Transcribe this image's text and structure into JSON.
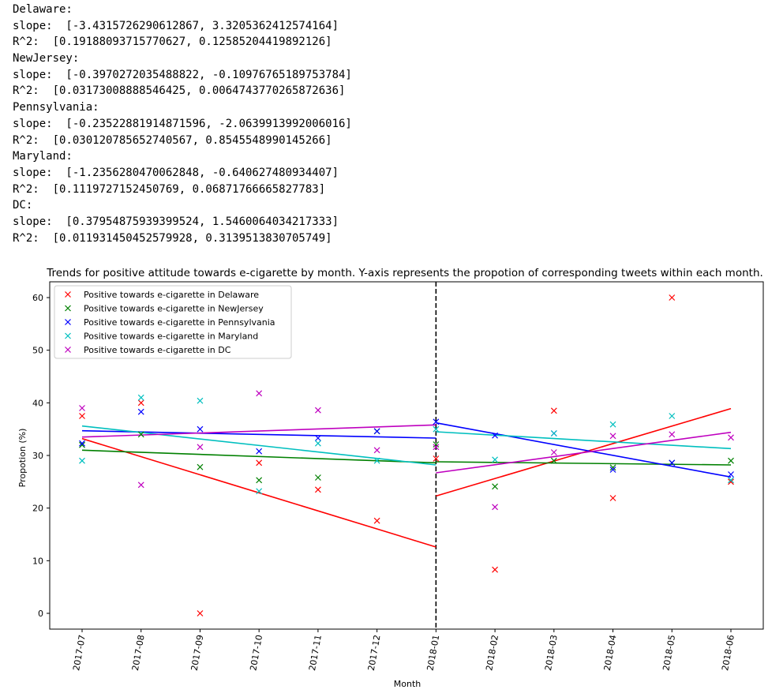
{
  "console_output": [
    "Delaware:",
    "slope:  [-3.4315726290612867, 3.3205362412574164]",
    "R^2:  [0.19188093715770627, 0.12585204419892126]",
    "NewJersey:",
    "slope:  [-0.3970272035488822, -0.10976765189753784]",
    "R^2:  [0.03173008888546425, 0.0064743770265872636]",
    "Pennsylvania:",
    "slope:  [-0.23522881914871596, -2.0639913992006016]",
    "R^2:  [0.030120785652740567, 0.8545548990145266]",
    "Maryland:",
    "slope:  [-1.2356280470062848, -0.640627480934407]",
    "R^2:  [0.1119727152450769, 0.06871766665827783]",
    "DC:",
    "slope:  [0.37954875939399524, 1.5460064034217333]",
    "R^2:  [0.011931450452579928, 0.3139513830705749]"
  ],
  "chart_data": {
    "type": "scatter",
    "title": "Trends for positive attitude towards e-cigarette by month. Y-axis represents the propotion of corresponding tweets within each month.",
    "xlabel": "Month",
    "ylabel": "Propotion (%)",
    "categories": [
      "2017-07",
      "2017-08",
      "2017-09",
      "2017-10",
      "2017-11",
      "2017-12",
      "2018-01",
      "2018-02",
      "2018-03",
      "2018-04",
      "2018-05",
      "2018-06"
    ],
    "ylim": [
      -3,
      63
    ],
    "yticks": [
      0,
      10,
      20,
      30,
      40,
      50,
      60
    ],
    "legend_position": "top-left",
    "divider_category": "2018-01",
    "series": [
      {
        "name": "Positive towards e-cigarette in Delaware",
        "color": "#ff0000",
        "values": [
          37.5,
          40.0,
          0.0,
          28.6,
          23.5,
          17.6,
          29.4,
          8.3,
          38.5,
          21.9,
          60.0,
          25.0
        ],
        "trend_segments": [
          {
            "x_start": 0,
            "x_end": 6,
            "y_start": 33.2,
            "y_end": 12.6
          },
          {
            "x_start": 6,
            "x_end": 11,
            "y_start": 22.3,
            "y_end": 38.9
          }
        ]
      },
      {
        "name": "Positive towards e-cigarette in NewJersey",
        "color": "#008000",
        "values": [
          32.0,
          34.0,
          27.8,
          25.3,
          25.8,
          34.6,
          32.1,
          24.1,
          29.0,
          27.7,
          28.6,
          29.0
        ],
        "trend_segments": [
          {
            "x_start": 0,
            "x_end": 6,
            "y_start": 31.0,
            "y_end": 28.6
          },
          {
            "x_start": 6,
            "x_end": 11,
            "y_start": 28.8,
            "y_end": 28.2
          }
        ]
      },
      {
        "name": "Positive towards e-cigarette in Pennsylvania",
        "color": "#0000ff",
        "values": [
          32.3,
          38.3,
          35.0,
          30.8,
          33.3,
          34.6,
          36.4,
          33.8,
          34.2,
          27.3,
          28.6,
          26.4
        ],
        "trend_segments": [
          {
            "x_start": 0,
            "x_end": 6,
            "y_start": 34.7,
            "y_end": 33.3
          },
          {
            "x_start": 6,
            "x_end": 11,
            "y_start": 36.2,
            "y_end": 25.9
          }
        ]
      },
      {
        "name": "Positive towards e-cigarette in Maryland",
        "color": "#00bfbf",
        "values": [
          29.0,
          41.0,
          40.4,
          23.2,
          32.3,
          29.0,
          35.0,
          29.2,
          34.2,
          35.9,
          37.5,
          25.3
        ],
        "trend_segments": [
          {
            "x_start": 0,
            "x_end": 6,
            "y_start": 35.6,
            "y_end": 28.2
          },
          {
            "x_start": 6,
            "x_end": 11,
            "y_start": 34.5,
            "y_end": 31.3
          }
        ]
      },
      {
        "name": "Positive towards e-cigarette in DC",
        "color": "#bf00bf",
        "values": [
          39.0,
          24.4,
          31.6,
          41.8,
          38.6,
          31.0,
          31.6,
          20.2,
          30.6,
          33.7,
          34.0,
          33.4
        ],
        "trend_segments": [
          {
            "x_start": 0,
            "x_end": 6,
            "y_start": 33.5,
            "y_end": 35.8
          },
          {
            "x_start": 6,
            "x_end": 11,
            "y_start": 26.7,
            "y_end": 34.4
          }
        ]
      }
    ]
  }
}
